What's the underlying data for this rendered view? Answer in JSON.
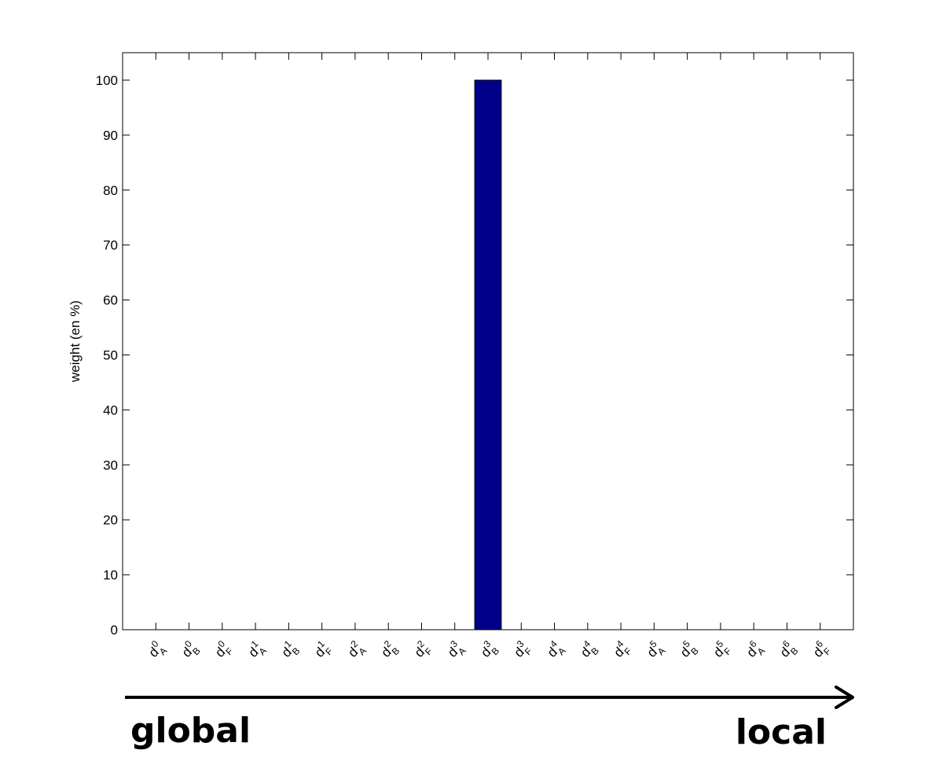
{
  "chart_data": {
    "type": "bar",
    "ylabel": "weight (en %)",
    "ylim": [
      0,
      105
    ],
    "yticks": [
      0,
      10,
      20,
      30,
      40,
      50,
      60,
      70,
      80,
      90,
      100
    ],
    "categories": [
      {
        "base": "d",
        "sup": "0",
        "sub": "A"
      },
      {
        "base": "d",
        "sup": "0",
        "sub": "B"
      },
      {
        "base": "d",
        "sup": "0",
        "sub": "F"
      },
      {
        "base": "d",
        "sup": "1",
        "sub": "A"
      },
      {
        "base": "d",
        "sup": "1",
        "sub": "B"
      },
      {
        "base": "d",
        "sup": "1",
        "sub": "F"
      },
      {
        "base": "d",
        "sup": "2",
        "sub": "A"
      },
      {
        "base": "d",
        "sup": "2",
        "sub": "B"
      },
      {
        "base": "d",
        "sup": "2",
        "sub": "F"
      },
      {
        "base": "d",
        "sup": "3",
        "sub": "A"
      },
      {
        "base": "d",
        "sup": "3",
        "sub": "B"
      },
      {
        "base": "d",
        "sup": "3",
        "sub": "F"
      },
      {
        "base": "d",
        "sup": "4",
        "sub": "A"
      },
      {
        "base": "d",
        "sup": "4",
        "sub": "B"
      },
      {
        "base": "d",
        "sup": "4",
        "sub": "F"
      },
      {
        "base": "d",
        "sup": "5",
        "sub": "A"
      },
      {
        "base": "d",
        "sup": "5",
        "sub": "B"
      },
      {
        "base": "d",
        "sup": "5",
        "sub": "F"
      },
      {
        "base": "d",
        "sup": "6",
        "sub": "A"
      },
      {
        "base": "d",
        "sup": "6",
        "sub": "B"
      },
      {
        "base": "d",
        "sup": "6",
        "sub": "F"
      }
    ],
    "values": [
      0,
      0,
      0,
      0,
      0,
      0,
      0,
      0,
      0,
      0,
      100,
      0,
      0,
      0,
      0,
      0,
      0,
      0,
      0,
      0,
      0
    ],
    "bar_color": "#00008B",
    "grid": false,
    "annotations": {
      "start_label": "global",
      "end_label": "local"
    }
  }
}
